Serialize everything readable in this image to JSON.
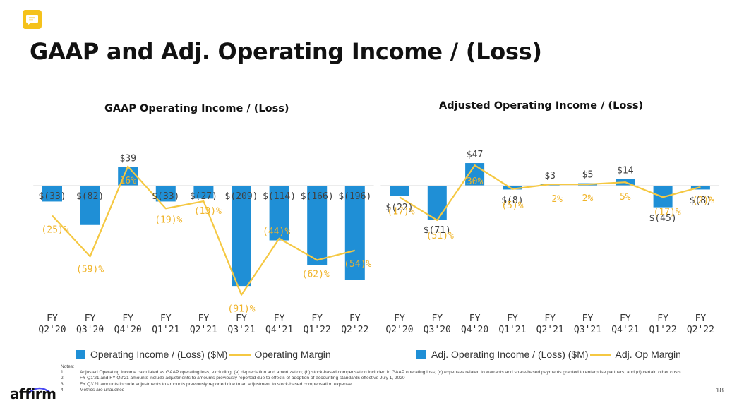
{
  "page": {
    "title": "GAAP and Adj. Operating Income / (Loss)",
    "page_number": "18",
    "brand": "affirm",
    "icon": "speech-bubble-icon"
  },
  "colors": {
    "bar": "#1f8fd6",
    "line": "#f5c842",
    "bar_label": "#404040",
    "line_label": "#f0b429",
    "accent": "#f5c21b"
  },
  "legend_left": {
    "bar_label": "Operating Income / (Loss) ($M)",
    "line_label": "Operating Margin"
  },
  "legend_right": {
    "bar_label": "Adj. Operating Income / (Loss) ($M)",
    "line_label": "Adj. Op Margin"
  },
  "notes": {
    "heading": "Notes:",
    "items": [
      {
        "num": "1.",
        "text": "Adjusted Operating Income calculated as GAAP operating loss, excluding: (a) depreciation and amortization; (b) stock-based compensation included in GAAP operating loss; (c) expenses related to warrants and share-based payments granted to enterprise partners; and (d) certain other costs"
      },
      {
        "num": "2.",
        "text": "FY Q1'21 and FY Q2'21 amounts include adjustments to amounts previously reported due to effects of adoption of accounting standards effective July 1, 2020"
      },
      {
        "num": "3.",
        "text": "FY Q3'21 amounts include adjustments to amounts previously reported due to an adjustment to stock-based compensation expense"
      },
      {
        "num": "4.",
        "text": "Metrics are unaudited"
      }
    ]
  },
  "chart_data": [
    {
      "type": "bar",
      "title": "GAAP Operating Income / (Loss)",
      "categories": [
        [
          "FY",
          "Q2'20"
        ],
        [
          "FY",
          "Q3'20"
        ],
        [
          "FY",
          "Q4'20"
        ],
        [
          "FY",
          "Q1'21"
        ],
        [
          "FY",
          "Q2'21"
        ],
        [
          "FY",
          "Q3'21"
        ],
        [
          "FY",
          "Q4'21"
        ],
        [
          "FY",
          "Q1'22"
        ],
        [
          "FY",
          "Q2'22"
        ]
      ],
      "series": [
        {
          "name": "Operating Income / (Loss) ($M)",
          "kind": "bar",
          "values": [
            -33,
            -82,
            39,
            -33,
            -27,
            -209,
            -114,
            -166,
            -196
          ],
          "labels": [
            "$(33)",
            "$(82)",
            "$39",
            "$(33)",
            "$(27)",
            "$(209)",
            "$(114)",
            "$(166)",
            "$(196)"
          ]
        },
        {
          "name": "Operating Margin",
          "kind": "line",
          "values": [
            -25,
            -59,
            16,
            -19,
            -13,
            -91,
            -44,
            -62,
            -54
          ],
          "labels": [
            "(25)%",
            "(59)%",
            "16%",
            "(19)%",
            "(13)%",
            "(91)%",
            "(44)%",
            "(62)%",
            "(54)%"
          ]
        }
      ]
    },
    {
      "type": "bar",
      "title": "Adjusted Operating Income / (Loss)",
      "categories": [
        [
          "FY",
          "Q2'20"
        ],
        [
          "FY",
          "Q3'20"
        ],
        [
          "FY",
          "Q4'20"
        ],
        [
          "FY",
          "Q1'21"
        ],
        [
          "FY",
          "Q2'21"
        ],
        [
          "FY",
          "Q3'21"
        ],
        [
          "FY",
          "Q4'21"
        ],
        [
          "FY",
          "Q1'22"
        ],
        [
          "FY",
          "Q2'22"
        ]
      ],
      "series": [
        {
          "name": "Adj. Operating Income / (Loss) ($M)",
          "kind": "bar",
          "values": [
            -22,
            -71,
            47,
            -8,
            3,
            5,
            14,
            -45,
            -8
          ],
          "labels": [
            "$(22)",
            "$(71)",
            "$47",
            "$(8)",
            "$3",
            "$5",
            "$14",
            "$(45)",
            "$(8)"
          ]
        },
        {
          "name": "Adj. Op Margin",
          "kind": "line",
          "values": [
            -17,
            -51,
            30,
            -5,
            2,
            2,
            5,
            -17,
            -2
          ],
          "labels": [
            "(17)%",
            "(51)%",
            "30%",
            "(5)%",
            "2%",
            "2%",
            "5%",
            "(17)%",
            "(2)%"
          ]
        }
      ]
    }
  ]
}
